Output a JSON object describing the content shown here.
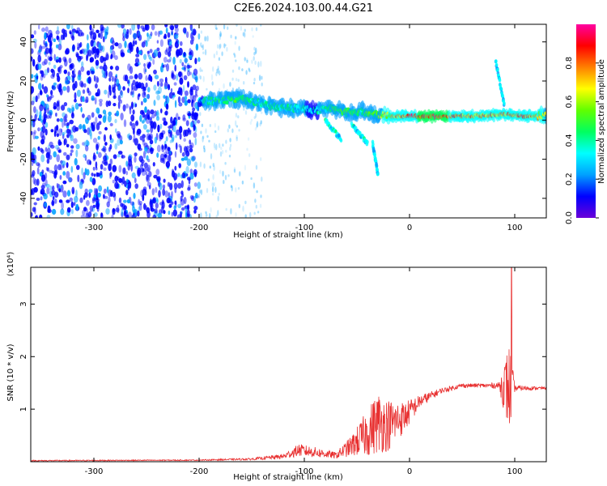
{
  "title": "C2E6.2024.103.00.44.G21",
  "chart_data": [
    {
      "type": "heatmap",
      "xlabel": "Height of straight line (km)",
      "ylabel": "Frequency (Hz)",
      "xlim": [
        -360,
        130
      ],
      "ylim": [
        -50,
        49
      ],
      "xticks": [
        -300,
        -200,
        -100,
        0,
        100
      ],
      "yticks": [
        -40,
        -20,
        0,
        20,
        40
      ],
      "colorbar": {
        "label": "Normalized spectral amplitude",
        "range": [
          0,
          1
        ],
        "ticks": [
          0.0,
          0.2,
          0.4,
          0.6,
          0.8
        ],
        "tick_labels": [
          "0.0",
          "0.2",
          "0.4",
          "0.6",
          "0.8"
        ],
        "colormap": [
          "#6a00d8",
          "#0000ff",
          "#00a0ff",
          "#00ffff",
          "#00ff60",
          "#60ff00",
          "#ffff00",
          "#ff8000",
          "#ff0000",
          "#ff00a0"
        ]
      },
      "noise_region": {
        "x": [
          -360,
          -200
        ],
        "amplitude": 0.2
      },
      "signal_track": [
        {
          "x": -200,
          "f": 10.0,
          "amp": 0.35
        },
        {
          "x": -180,
          "f": 10.0,
          "amp": 0.45
        },
        {
          "x": -160,
          "f": 11.0,
          "amp": 0.5
        },
        {
          "x": -145,
          "f": 9.0,
          "amp": 0.4
        },
        {
          "x": -130,
          "f": 7.0,
          "amp": 0.45
        },
        {
          "x": -110,
          "f": 6.0,
          "amp": 0.4
        },
        {
          "x": -90,
          "f": 5.0,
          "amp": 0.35
        },
        {
          "x": -75,
          "f": 6.0,
          "amp": 0.45
        },
        {
          "x": -60,
          "f": 4.0,
          "amp": 0.5
        },
        {
          "x": -45,
          "f": 4.5,
          "amp": 0.45
        },
        {
          "x": -30,
          "f": 3.0,
          "amp": 0.55
        },
        {
          "x": -20,
          "f": 2.0,
          "amp": 0.7
        },
        {
          "x": 0,
          "f": 2.0,
          "amp": 0.85
        },
        {
          "x": 30,
          "f": 2.0,
          "amp": 0.9
        },
        {
          "x": 60,
          "f": 2.0,
          "amp": 0.75
        },
        {
          "x": 90,
          "f": 3.0,
          "amp": 0.8
        },
        {
          "x": 110,
          "f": 2.0,
          "amp": 0.85
        },
        {
          "x": 130,
          "f": 2.5,
          "amp": 0.6
        }
      ],
      "branches": [
        {
          "x": [
            -80,
            -65
          ],
          "f": [
            0,
            -10
          ],
          "amp": 0.35
        },
        {
          "x": [
            -55,
            -40
          ],
          "f": [
            -2,
            -12
          ],
          "amp": 0.35
        },
        {
          "x": [
            -35,
            -30
          ],
          "f": [
            -12,
            -28
          ],
          "amp": 0.3
        },
        {
          "x": [
            82,
            90
          ],
          "f": [
            30,
            8
          ],
          "amp": 0.3
        }
      ]
    },
    {
      "type": "line",
      "xlabel": "Height of straight line (km)",
      "ylabel": "SNR (10 * v/v)",
      "y_multiplier": "(x10⁴)",
      "xlim": [
        -360,
        130
      ],
      "ylim": [
        0,
        3.7
      ],
      "xticks": [
        -300,
        -200,
        -100,
        0,
        100
      ],
      "yticks": [
        1,
        2,
        3
      ],
      "line_color": "#e83030",
      "profile": [
        {
          "x": -360,
          "y": 0.02,
          "noise": 0.01
        },
        {
          "x": -200,
          "y": 0.03,
          "noise": 0.01
        },
        {
          "x": -150,
          "y": 0.05,
          "noise": 0.02
        },
        {
          "x": -120,
          "y": 0.1,
          "noise": 0.05
        },
        {
          "x": -105,
          "y": 0.22,
          "noise": 0.12
        },
        {
          "x": -90,
          "y": 0.18,
          "noise": 0.1
        },
        {
          "x": -70,
          "y": 0.12,
          "noise": 0.06
        },
        {
          "x": -55,
          "y": 0.3,
          "noise": 0.2
        },
        {
          "x": -40,
          "y": 0.55,
          "noise": 0.45
        },
        {
          "x": -30,
          "y": 0.75,
          "noise": 0.6
        },
        {
          "x": -20,
          "y": 0.7,
          "noise": 0.5
        },
        {
          "x": -5,
          "y": 0.85,
          "noise": 0.3
        },
        {
          "x": 10,
          "y": 1.15,
          "noise": 0.12
        },
        {
          "x": 30,
          "y": 1.35,
          "noise": 0.05
        },
        {
          "x": 50,
          "y": 1.45,
          "noise": 0.04
        },
        {
          "x": 70,
          "y": 1.45,
          "noise": 0.04
        },
        {
          "x": 85,
          "y": 1.45,
          "noise": 0.06
        },
        {
          "x": 95,
          "y": 1.4,
          "noise": 0.9
        },
        {
          "x": 100,
          "y": 1.4,
          "noise": 0.06
        },
        {
          "x": 130,
          "y": 1.4,
          "noise": 0.02
        }
      ],
      "peak": {
        "x": 97,
        "y": 3.7
      }
    }
  ]
}
